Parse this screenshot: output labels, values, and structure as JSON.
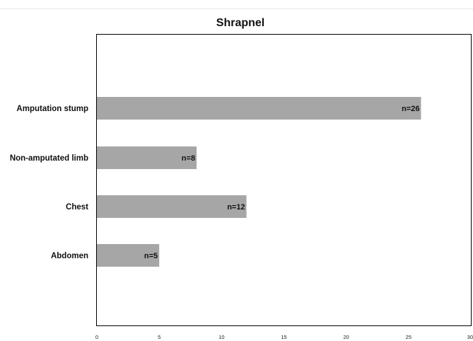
{
  "chart_data": {
    "type": "bar",
    "orientation": "horizontal",
    "title": "Shrapnel",
    "xlabel": "",
    "ylabel": "",
    "categories": [
      "Amputation stump",
      "Non-amputated limb",
      "Chest",
      "Abdomen"
    ],
    "values": [
      26,
      8,
      12,
      5
    ],
    "data_labels": [
      "n=26",
      "n=8",
      "n=12",
      "n=5"
    ],
    "xlim": [
      0,
      30
    ],
    "xticks": [
      0,
      5,
      10,
      15,
      20,
      25,
      30
    ],
    "grid": false,
    "legend": "none",
    "bar_color": "#a6a6a6"
  }
}
